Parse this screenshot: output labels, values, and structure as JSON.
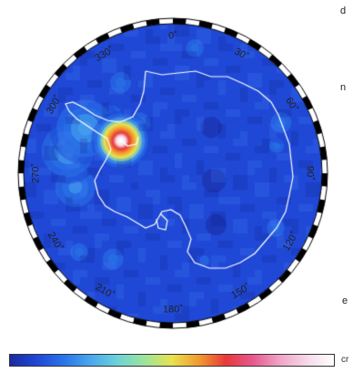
{
  "edge_text": [
    "d",
    "n",
    "e"
  ],
  "colorbar": {
    "colors": [
      "#1a2aa0",
      "#1f48d6",
      "#2a74ea",
      "#4aa8ee",
      "#6dd3d8",
      "#9ee49a",
      "#e8e24e",
      "#f29a2e",
      "#e8383a",
      "#e85890",
      "#f0a4c8",
      "#f6d8e8",
      "#ffffff"
    ],
    "unit": "cr"
  },
  "map": {
    "longitude_labels": [
      {
        "text": "0˚",
        "deg": 0
      },
      {
        "text": "30˚",
        "deg": 30
      },
      {
        "text": "60˚",
        "deg": 60
      },
      {
        "text": "90˚",
        "deg": 90
      },
      {
        "text": "120˚",
        "deg": 120
      },
      {
        "text": "150˚",
        "deg": 150
      },
      {
        "text": "180˚",
        "deg": 180
      },
      {
        "text": "210˚",
        "deg": 210
      },
      {
        "text": "240˚",
        "deg": 240
      },
      {
        "text": "270˚",
        "deg": 270
      },
      {
        "text": "300˚",
        "deg": 300
      },
      {
        "text": "330˚",
        "deg": 330
      }
    ],
    "background_color": "#1f48d6",
    "blobs": [
      {
        "deg": 302,
        "rho": 0.41,
        "size": 0.2,
        "level": 8.8
      },
      {
        "deg": 300,
        "rho": 0.41,
        "size": 0.12,
        "level": 4.5
      },
      {
        "deg": 302,
        "rho": 0.43,
        "size": 0.06,
        "level": 3.2
      },
      {
        "deg": 297,
        "rho": 0.66,
        "size": 0.24,
        "level": 3.4
      },
      {
        "deg": 282,
        "rho": 0.72,
        "size": 0.22,
        "level": 3.2
      },
      {
        "deg": 262,
        "rho": 0.66,
        "size": 0.18,
        "level": 2.6
      },
      {
        "deg": 312,
        "rho": 0.56,
        "size": 0.16,
        "level": 2.4
      },
      {
        "deg": 330,
        "rho": 0.7,
        "size": 0.14,
        "level": 2.4
      },
      {
        "deg": 326,
        "rho": 0.4,
        "size": 0.1,
        "level": 2.6
      },
      {
        "deg": 10,
        "rho": 0.85,
        "size": 0.12,
        "level": 2.2
      },
      {
        "deg": 65,
        "rho": 0.8,
        "size": 0.14,
        "level": 2.2
      },
      {
        "deg": 75,
        "rho": 0.72,
        "size": 0.1,
        "level": 2.1
      },
      {
        "deg": 118,
        "rho": 0.78,
        "size": 0.12,
        "level": 2.2
      },
      {
        "deg": 215,
        "rho": 0.7,
        "size": 0.14,
        "level": 2.2
      },
      {
        "deg": 230,
        "rho": 0.82,
        "size": 0.12,
        "level": 2.1
      },
      {
        "deg": 160,
        "rho": 0.62,
        "size": 0.1,
        "level": 1.6
      },
      {
        "deg": 40,
        "rho": 0.4,
        "size": 0.14,
        "level": 0.4
      },
      {
        "deg": 100,
        "rho": 0.28,
        "size": 0.16,
        "level": 0.3
      },
      {
        "deg": 140,
        "rho": 0.45,
        "size": 0.14,
        "level": 0.4
      }
    ]
  }
}
